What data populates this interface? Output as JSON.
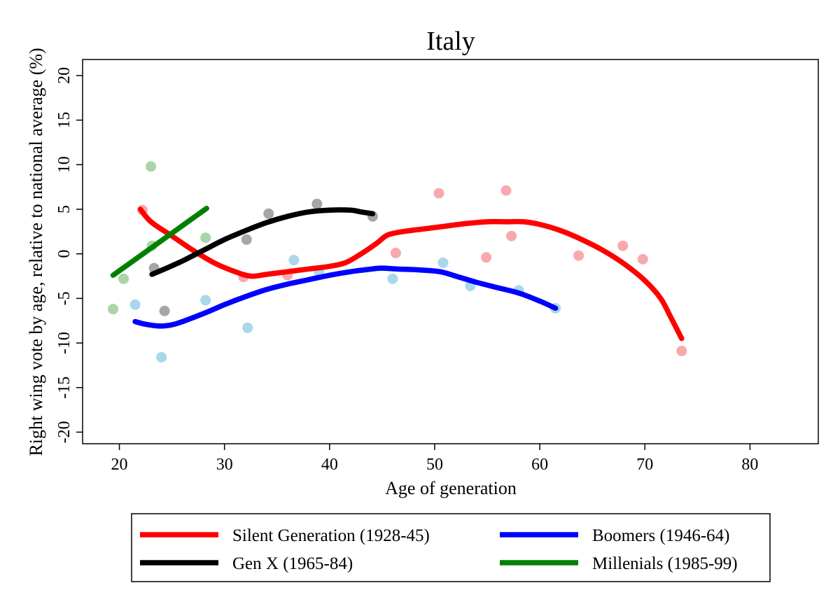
{
  "chart_data": {
    "type": "scatter",
    "title": "Italy",
    "xlabel": "Age of generation",
    "ylabel": "Right wing vote by age, relative to national average (%)",
    "xlim": [
      16.5,
      86.5
    ],
    "ylim": [
      -21.3,
      21.8
    ],
    "x_ticks": [
      20,
      30,
      40,
      50,
      60,
      70,
      80
    ],
    "y_ticks": [
      20,
      15,
      10,
      5,
      0,
      -5,
      -10,
      -15,
      -20
    ],
    "x_tick_labels": [
      "20",
      "30",
      "40",
      "50",
      "60",
      "70",
      "80"
    ],
    "y_tick_labels": [
      "20",
      "15",
      "10",
      "5",
      "0",
      "-5",
      "-10",
      "-15",
      "-20"
    ],
    "grid": false,
    "legend_position": "bottom",
    "series": [
      {
        "name": "Silent Generation (1928-45)",
        "line_color": "#ff0000",
        "point_color": "#f7aaad",
        "points": [
          [
            22.2,
            4.9
          ],
          [
            31.8,
            -2.6
          ],
          [
            36.0,
            -2.4
          ],
          [
            46.3,
            0.1
          ],
          [
            50.4,
            6.8
          ],
          [
            54.9,
            -0.4
          ],
          [
            56.8,
            7.1
          ],
          [
            57.3,
            2.0
          ],
          [
            63.7,
            -0.2
          ],
          [
            67.9,
            0.9
          ],
          [
            69.8,
            -0.6
          ],
          [
            73.5,
            -10.9
          ]
        ],
        "fit": [
          [
            22.0,
            5.0
          ],
          [
            23.0,
            3.6
          ],
          [
            25.0,
            2.0
          ],
          [
            27.0,
            0.4
          ],
          [
            29.0,
            -1.0
          ],
          [
            31.0,
            -2.0
          ],
          [
            32.5,
            -2.5
          ],
          [
            34.0,
            -2.3
          ],
          [
            36.0,
            -2.0
          ],
          [
            38.0,
            -1.7
          ],
          [
            40.0,
            -1.4
          ],
          [
            41.5,
            -1.0
          ],
          [
            43.0,
            0.0
          ],
          [
            44.5,
            1.2
          ],
          [
            45.5,
            2.1
          ],
          [
            47.0,
            2.5
          ],
          [
            49.0,
            2.8
          ],
          [
            51.0,
            3.1
          ],
          [
            53.0,
            3.4
          ],
          [
            55.0,
            3.6
          ],
          [
            57.0,
            3.6
          ],
          [
            58.5,
            3.6
          ],
          [
            60.0,
            3.3
          ],
          [
            62.0,
            2.6
          ],
          [
            64.0,
            1.6
          ],
          [
            66.0,
            0.4
          ],
          [
            68.0,
            -1.1
          ],
          [
            70.0,
            -3.0
          ],
          [
            71.5,
            -5.0
          ],
          [
            72.5,
            -7.2
          ],
          [
            73.5,
            -9.5
          ]
        ]
      },
      {
        "name": "Boomers (1946-64)",
        "line_color": "#0000ff",
        "point_color": "#a8d8ea",
        "points": [
          [
            21.5,
            -5.7
          ],
          [
            24.0,
            -11.6
          ],
          [
            28.2,
            -5.2
          ],
          [
            32.2,
            -8.3
          ],
          [
            36.6,
            -0.7
          ],
          [
            39.0,
            -2.0
          ],
          [
            46.0,
            -2.8
          ],
          [
            50.8,
            -1.0
          ],
          [
            53.4,
            -3.6
          ],
          [
            58.0,
            -4.1
          ],
          [
            61.5,
            -6.1
          ]
        ],
        "fit": [
          [
            21.5,
            -7.6
          ],
          [
            22.5,
            -7.9
          ],
          [
            24.0,
            -8.1
          ],
          [
            25.5,
            -7.8
          ],
          [
            28.0,
            -6.7
          ],
          [
            30.0,
            -5.7
          ],
          [
            32.0,
            -4.8
          ],
          [
            34.0,
            -4.0
          ],
          [
            36.0,
            -3.4
          ],
          [
            38.0,
            -2.9
          ],
          [
            40.0,
            -2.4
          ],
          [
            42.0,
            -2.0
          ],
          [
            44.0,
            -1.7
          ],
          [
            45.0,
            -1.6
          ],
          [
            46.5,
            -1.7
          ],
          [
            48.5,
            -1.8
          ],
          [
            50.5,
            -2.0
          ],
          [
            52.0,
            -2.5
          ],
          [
            54.0,
            -3.2
          ],
          [
            56.0,
            -3.8
          ],
          [
            58.0,
            -4.4
          ],
          [
            60.0,
            -5.3
          ],
          [
            61.5,
            -6.1
          ]
        ]
      },
      {
        "name": "Gen X (1965-84)",
        "line_color": "#000000",
        "point_color": "#a6a6a6",
        "points": [
          [
            23.3,
            -1.6
          ],
          [
            24.3,
            -6.4
          ],
          [
            32.1,
            1.6
          ],
          [
            34.2,
            4.5
          ],
          [
            38.8,
            5.6
          ],
          [
            44.1,
            4.2
          ]
        ],
        "fit": [
          [
            23.1,
            -2.3
          ],
          [
            24.5,
            -1.6
          ],
          [
            26.0,
            -0.8
          ],
          [
            28.0,
            0.4
          ],
          [
            30.0,
            1.6
          ],
          [
            32.0,
            2.6
          ],
          [
            34.0,
            3.5
          ],
          [
            36.0,
            4.2
          ],
          [
            38.0,
            4.7
          ],
          [
            40.0,
            4.9
          ],
          [
            42.0,
            4.9
          ],
          [
            43.0,
            4.7
          ],
          [
            44.1,
            4.5
          ]
        ]
      },
      {
        "name": "Millenials (1985-99)",
        "line_color": "#008000",
        "point_color": "#a9d5a9",
        "points": [
          [
            19.4,
            -6.2
          ],
          [
            20.4,
            -2.8
          ],
          [
            23.0,
            9.8
          ],
          [
            23.1,
            0.9
          ],
          [
            28.2,
            1.8
          ]
        ],
        "fit": [
          [
            19.4,
            -2.4
          ],
          [
            28.3,
            5.1
          ]
        ]
      }
    ]
  }
}
